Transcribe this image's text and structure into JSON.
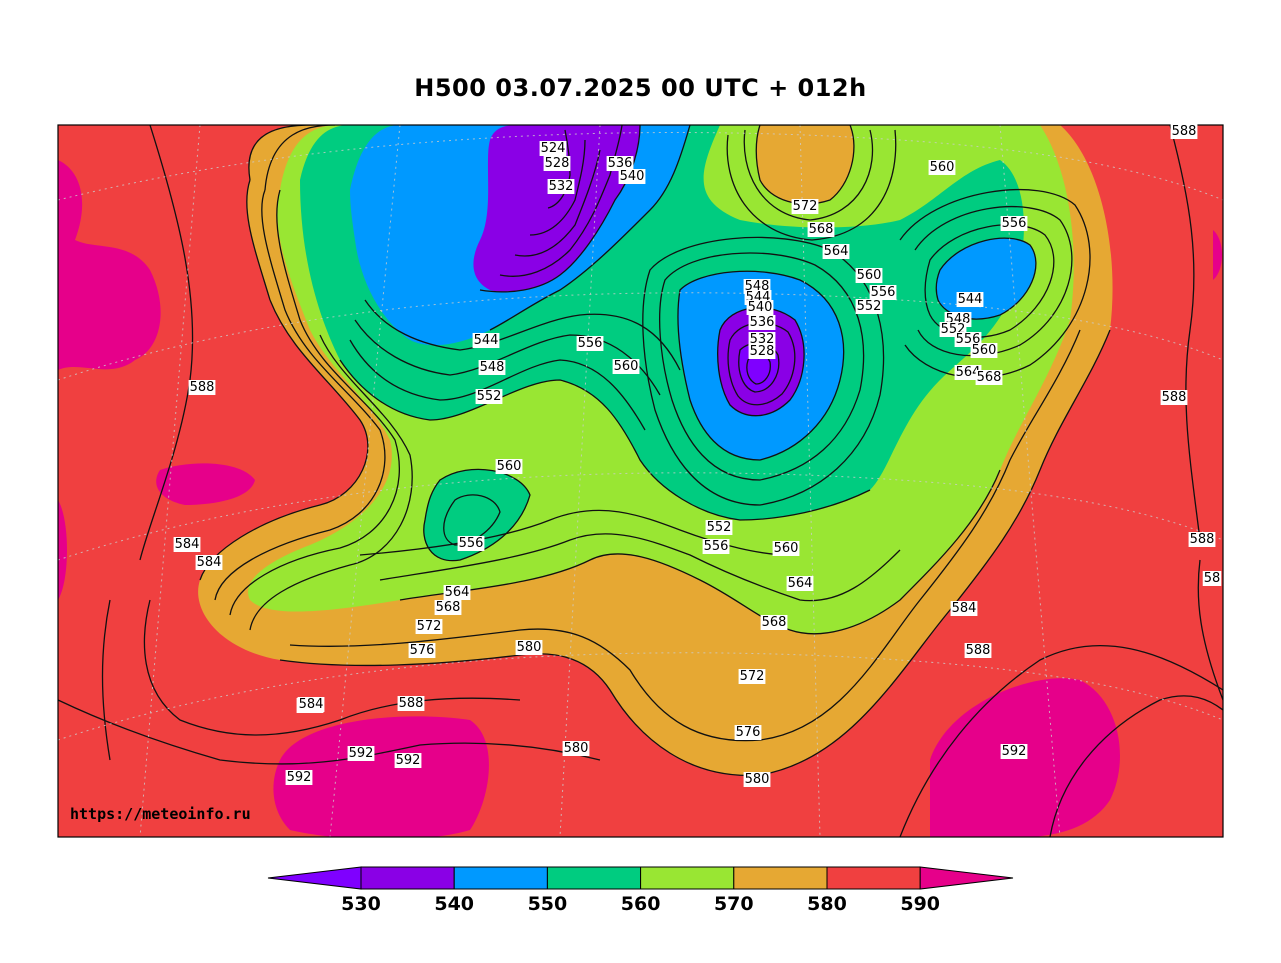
{
  "title": "H500  03.07.2025 00 UTC + 012h",
  "watermark": "https://meteoinfo.ru",
  "colors": {
    "below_530": "#7f00ff",
    "530_540": "#8a00e6",
    "540_550": "#0099ff",
    "550_560": "#00cc80",
    "560_570": "#99e633",
    "570_580": "#e6a833",
    "580_590": "#f04040",
    "above_590": "#e6008a"
  },
  "colorbar": {
    "ticks": [
      "530",
      "540",
      "550",
      "560",
      "570",
      "580",
      "590"
    ]
  },
  "contour_labels": [
    {
      "text": "524"
    },
    {
      "text": "528"
    },
    {
      "text": "532"
    },
    {
      "text": "536"
    },
    {
      "text": "540"
    },
    {
      "text": "572"
    },
    {
      "text": "568"
    },
    {
      "text": "564"
    },
    {
      "text": "560"
    },
    {
      "text": "556"
    },
    {
      "text": "552"
    },
    {
      "text": "588"
    },
    {
      "text": "560"
    },
    {
      "text": "556"
    },
    {
      "text": "544"
    },
    {
      "text": "548"
    },
    {
      "text": "552"
    },
    {
      "text": "556"
    },
    {
      "text": "560"
    },
    {
      "text": "564"
    },
    {
      "text": "568"
    },
    {
      "text": "548"
    },
    {
      "text": "544"
    },
    {
      "text": "540"
    },
    {
      "text": "536"
    },
    {
      "text": "532"
    },
    {
      "text": "528"
    },
    {
      "text": "544"
    },
    {
      "text": "548"
    },
    {
      "text": "552"
    },
    {
      "text": "556"
    },
    {
      "text": "560"
    },
    {
      "text": "588"
    },
    {
      "text": "588"
    },
    {
      "text": "584"
    },
    {
      "text": "560"
    },
    {
      "text": "556"
    },
    {
      "text": "564"
    },
    {
      "text": "568"
    },
    {
      "text": "572"
    },
    {
      "text": "576"
    },
    {
      "text": "580"
    },
    {
      "text": "552"
    },
    {
      "text": "556"
    },
    {
      "text": "560"
    },
    {
      "text": "564"
    },
    {
      "text": "568"
    },
    {
      "text": "572"
    },
    {
      "text": "576"
    },
    {
      "text": "580"
    },
    {
      "text": "584"
    },
    {
      "text": "588"
    },
    {
      "text": "588"
    },
    {
      "text": "584"
    },
    {
      "text": "592"
    },
    {
      "text": "592"
    },
    {
      "text": "592"
    },
    {
      "text": "584"
    },
    {
      "text": "580"
    },
    {
      "text": "584"
    },
    {
      "text": "592"
    },
    {
      "text": "588"
    },
    {
      "text": "58"
    }
  ]
}
